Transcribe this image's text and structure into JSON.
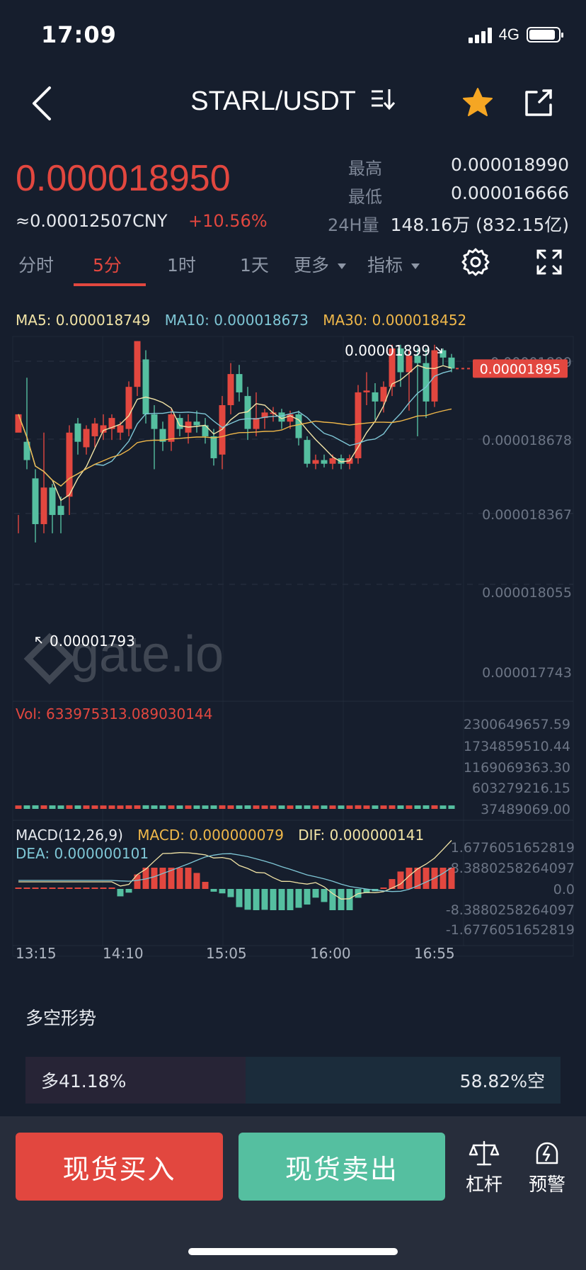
{
  "status_bar": {
    "time": "17:09",
    "network": "4G"
  },
  "header": {
    "pair": "STARL/USDT",
    "back_icon": "chevron-left-icon",
    "switch_icon": "switch-pair-icon",
    "star_icon": "star-icon",
    "share_icon": "share-icon"
  },
  "price": {
    "last": "0.000018950",
    "cny": "≈0.00012507CNY",
    "change": "+10.56%"
  },
  "stats": {
    "high_label": "最高",
    "high_value": "0.000018990",
    "low_label": "最低",
    "low_value": "0.000016666",
    "vol_label": "24H量",
    "vol_value": "148.16万 (832.15亿)"
  },
  "tabs": [
    "分时",
    "5分",
    "1时",
    "1天",
    "更多",
    "指标"
  ],
  "active_tab": "5分",
  "colors": {
    "up": "#e2473f",
    "down": "#55bfa0",
    "ma5": "#f2e4a6",
    "ma10": "#7fc7d6",
    "ma30": "#f0b84a",
    "bg": "#161e2d"
  },
  "ma": {
    "ma5_text": "MA5: 0.000018749",
    "ma10_text": "MA10: 0.000018673",
    "ma30_text": "MA30: 0.000018452"
  },
  "chart_data": {
    "type": "candlestick",
    "price_axis_labels": [
      "0.00001899",
      "0.000018678",
      "0.000018367",
      "0.000018055",
      "0.000017743"
    ],
    "current_price_tag": "0.00001895",
    "max_annotation": "0.00001899",
    "min_annotation": "0.00001793",
    "watermark": "gate.io",
    "volume_text": "Vol: 633975313.089030144",
    "volume_axis_labels": [
      "2300649657.59",
      "1734859510.44",
      "1169069363.30",
      "603279216.15",
      "37489069.00"
    ],
    "macd_text": {
      "params": "MACD(12,26,9)",
      "macd": "MACD: 0.000000079",
      "dif": "DIF: 0.000000141",
      "dea": "DEA: 0.000000101"
    },
    "macd_axis_labels": [
      "1.6776051652819",
      "8.3880258264097",
      "0.0",
      "-8.3880258264097",
      "-1.6776051652819"
    ],
    "time_labels": [
      "13:15",
      "14:10",
      "15:05",
      "16:00",
      "16:55"
    ],
    "candles": [
      [
        1.86e-05,
        1.87e-05,
        1.805e-05,
        1.815e-05
      ],
      [
        1.855e-05,
        1.845e-05,
        1.89e-05,
        1.84e-05
      ],
      [
        1.835e-05,
        1.81e-05,
        1.84e-05,
        1.8e-05
      ],
      [
        1.81e-05,
        1.83e-05,
        1.86e-05,
        1.805e-05
      ],
      [
        1.83e-05,
        1.815e-05,
        1.832e-05,
        1.805e-05
      ],
      [
        1.82e-05,
        1.815e-05,
        1.825e-05,
        1.805e-05
      ],
      [
        1.825e-05,
        1.86e-05,
        1.864e-05,
        1.815e-05
      ],
      [
        1.865e-05,
        1.855e-05,
        1.868e-05,
        1.848e-05
      ],
      [
        1.852e-05,
        1.862e-05,
        1.864e-05,
        1.848e-05
      ],
      [
        1.858e-05,
        1.865e-05,
        1.868e-05,
        1.852e-05
      ],
      [
        1.86e-05,
        1.864e-05,
        1.87e-05,
        1.856e-05
      ],
      [
        1.862e-05,
        1.868e-05,
        1.87e-05,
        1.856e-05
      ],
      [
        1.86e-05,
        1.864e-05,
        1.866e-05,
        1.856e-05
      ],
      [
        1.862e-05,
        1.885e-05,
        1.888e-05,
        1.858e-05
      ],
      [
        1.885e-05,
        1.91e-05,
        1.91e-05,
        1.88e-05
      ],
      [
        1.9e-05,
        1.87e-05,
        1.905e-05,
        1.865e-05
      ],
      [
        1.87e-05,
        1.862e-05,
        1.875e-05,
        1.84e-05
      ],
      [
        1.862e-05,
        1.855e-05,
        1.866e-05,
        1.85e-05
      ],
      [
        1.855e-05,
        1.87e-05,
        1.873e-05,
        1.85e-05
      ],
      [
        1.868e-05,
        1.862e-05,
        1.87e-05,
        1.858e-05
      ],
      [
        1.86e-05,
        1.866e-05,
        1.87e-05,
        1.854e-05
      ],
      [
        1.866e-05,
        1.864e-05,
        1.872e-05,
        1.86e-05
      ],
      [
        1.864e-05,
        1.858e-05,
        1.868e-05,
        1.854e-05
      ],
      [
        1.858e-05,
        1.846e-05,
        1.862e-05,
        1.842e-05
      ],
      [
        1.848e-05,
        1.875e-05,
        1.88e-05,
        1.84e-05
      ],
      [
        1.875e-05,
        1.892e-05,
        1.898e-05,
        1.87e-05
      ],
      [
        1.892e-05,
        1.882e-05,
        1.897e-05,
        1.877e-05
      ],
      [
        1.88e-05,
        1.862e-05,
        1.885e-05,
        1.856e-05
      ],
      [
        1.862e-05,
        1.868e-05,
        1.882e-05,
        1.858e-05
      ],
      [
        1.868e-05,
        1.871e-05,
        1.873e-05,
        1.862e-05
      ],
      [
        1.871e-05,
        1.871e-05,
        1.874e-05,
        1.866e-05
      ],
      [
        1.871e-05,
        1.866e-05,
        1.873e-05,
        1.862e-05
      ],
      [
        1.866e-05,
        1.87e-05,
        1.872e-05,
        1.862e-05
      ],
      [
        1.87e-05,
        1.857e-05,
        1.872e-05,
        1.853e-05
      ],
      [
        1.856e-05,
        1.843e-05,
        1.858e-05,
        1.841e-05
      ],
      [
        1.843e-05,
        1.845e-05,
        1.848e-05,
        1.84e-05
      ],
      [
        1.845e-05,
        1.843e-05,
        1.848e-05,
        1.841e-05
      ],
      [
        1.843e-05,
        1.846e-05,
        1.848e-05,
        1.84e-05
      ],
      [
        1.846e-05,
        1.843e-05,
        1.848e-05,
        1.84e-05
      ],
      [
        1.843e-05,
        1.846e-05,
        1.848e-05,
        1.84e-05
      ],
      [
        1.846e-05,
        1.882e-05,
        1.886e-05,
        1.843e-05
      ],
      [
        1.882e-05,
        1.883e-05,
        1.893e-05,
        1.875e-05
      ],
      [
        1.882e-05,
        1.877e-05,
        1.887e-05,
        1.867e-05
      ],
      [
        1.877e-05,
        1.885e-05,
        1.888e-05,
        1.871e-05
      ],
      [
        1.885e-05,
        1.906e-05,
        1.908e-05,
        1.88e-05
      ],
      [
        1.906e-05,
        1.893e-05,
        1.908e-05,
        1.885e-05
      ],
      [
        1.893e-05,
        1.902e-05,
        1.905e-05,
        1.872e-05
      ],
      [
        1.902e-05,
        1.898e-05,
        1.906e-05,
        1.858e-05
      ],
      [
        1.898e-05,
        1.877e-05,
        1.906e-05,
        1.868e-05
      ],
      [
        1.877e-05,
        1.905e-05,
        1.908e-05,
        1.874e-05
      ],
      [
        1.905e-05,
        1.901e-05,
        1.906e-05,
        1.897e-05
      ],
      [
        1.901e-05,
        1.895e-05,
        1.903e-05,
        1.893e-05
      ]
    ]
  },
  "long_short": {
    "title": "多空形势",
    "long_label": "多41.18%",
    "short_label": "58.82%空",
    "long_ratio": 0.4118
  },
  "bottom": {
    "buy": "现货买入",
    "sell": "现货卖出",
    "leverage": "杠杆",
    "alert": "预警"
  }
}
